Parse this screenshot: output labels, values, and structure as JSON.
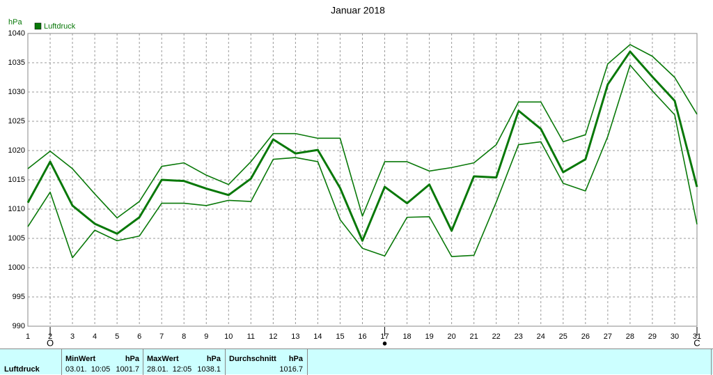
{
  "chart_data": {
    "type": "line",
    "title": "Januar 2018",
    "y_label": "hPa",
    "x": [
      1,
      2,
      3,
      4,
      5,
      6,
      7,
      8,
      9,
      10,
      11,
      12,
      13,
      14,
      15,
      16,
      17,
      18,
      19,
      20,
      21,
      22,
      23,
      24,
      25,
      26,
      27,
      28,
      29,
      30,
      31
    ],
    "xlim": [
      1,
      31
    ],
    "xticks": [
      1,
      2,
      3,
      4,
      5,
      6,
      7,
      8,
      9,
      10,
      11,
      12,
      13,
      14,
      15,
      16,
      17,
      18,
      19,
      20,
      21,
      22,
      23,
      24,
      25,
      26,
      27,
      28,
      29,
      30,
      31
    ],
    "ylim": [
      990,
      1040
    ],
    "yticks": [
      990,
      995,
      1000,
      1005,
      1010,
      1015,
      1020,
      1025,
      1030,
      1035,
      1040
    ],
    "grid": true,
    "legend": "top-left",
    "series": [
      {
        "name": "Luftdruck",
        "color": "#087808",
        "values": [
          1011.1,
          1018.1,
          1010.6,
          1007.5,
          1005.8,
          1008.6,
          1015.0,
          1014.8,
          1013.5,
          1012.4,
          1015.2,
          1021.9,
          1019.5,
          1020.1,
          1013.6,
          1004.6,
          1013.8,
          1011.0,
          1014.2,
          1006.3,
          1015.6,
          1015.4,
          1026.8,
          1023.7,
          1016.3,
          1018.5,
          1031.3,
          1036.9,
          1032.6,
          1028.5,
          1013.8
        ]
      },
      {
        "color": "#087808",
        "values": [
          1016.9,
          1019.9,
          1016.9,
          1012.6,
          1008.5,
          1011.3,
          1017.3,
          1017.9,
          1015.8,
          1014.2,
          1018.1,
          1022.9,
          1022.9,
          1022.1,
          1022.1,
          1008.8,
          1018.1,
          1018.1,
          1016.5,
          1017.1,
          1017.9,
          1021.0,
          1028.3,
          1028.3,
          1021.5,
          1022.7,
          1034.8,
          1038.1,
          1036.1,
          1032.5,
          1026.2
        ]
      },
      {
        "color": "#087808",
        "values": [
          1007.0,
          1012.9,
          1001.7,
          1006.4,
          1004.6,
          1005.4,
          1011.0,
          1011.0,
          1010.6,
          1011.5,
          1011.3,
          1018.5,
          1018.8,
          1018.1,
          1008.2,
          1003.3,
          1002.0,
          1008.6,
          1008.7,
          1001.9,
          1002.1,
          1011.2,
          1021.0,
          1021.5,
          1014.4,
          1013.1,
          1022.4,
          1034.6,
          1030.2,
          1026.1,
          1007.4
        ]
      }
    ],
    "moon_markers": [
      {
        "x": 2,
        "symbol": "O"
      },
      {
        "x": 17,
        "symbol": "●"
      },
      {
        "x": 31,
        "symbol": "C"
      }
    ]
  },
  "summary_table": {
    "row_label": "Luftdruck",
    "columns": [
      {
        "header": "MinWert",
        "unit": "hPa",
        "when": "03.01.  10:05",
        "value": "1001.7"
      },
      {
        "header": "MaxWert",
        "unit": "hPa",
        "when": "28.01.  12:05",
        "value": "1038.1"
      },
      {
        "header": "Durchschnitt",
        "unit": "hPa",
        "when": "",
        "value": "1016.7"
      }
    ]
  }
}
